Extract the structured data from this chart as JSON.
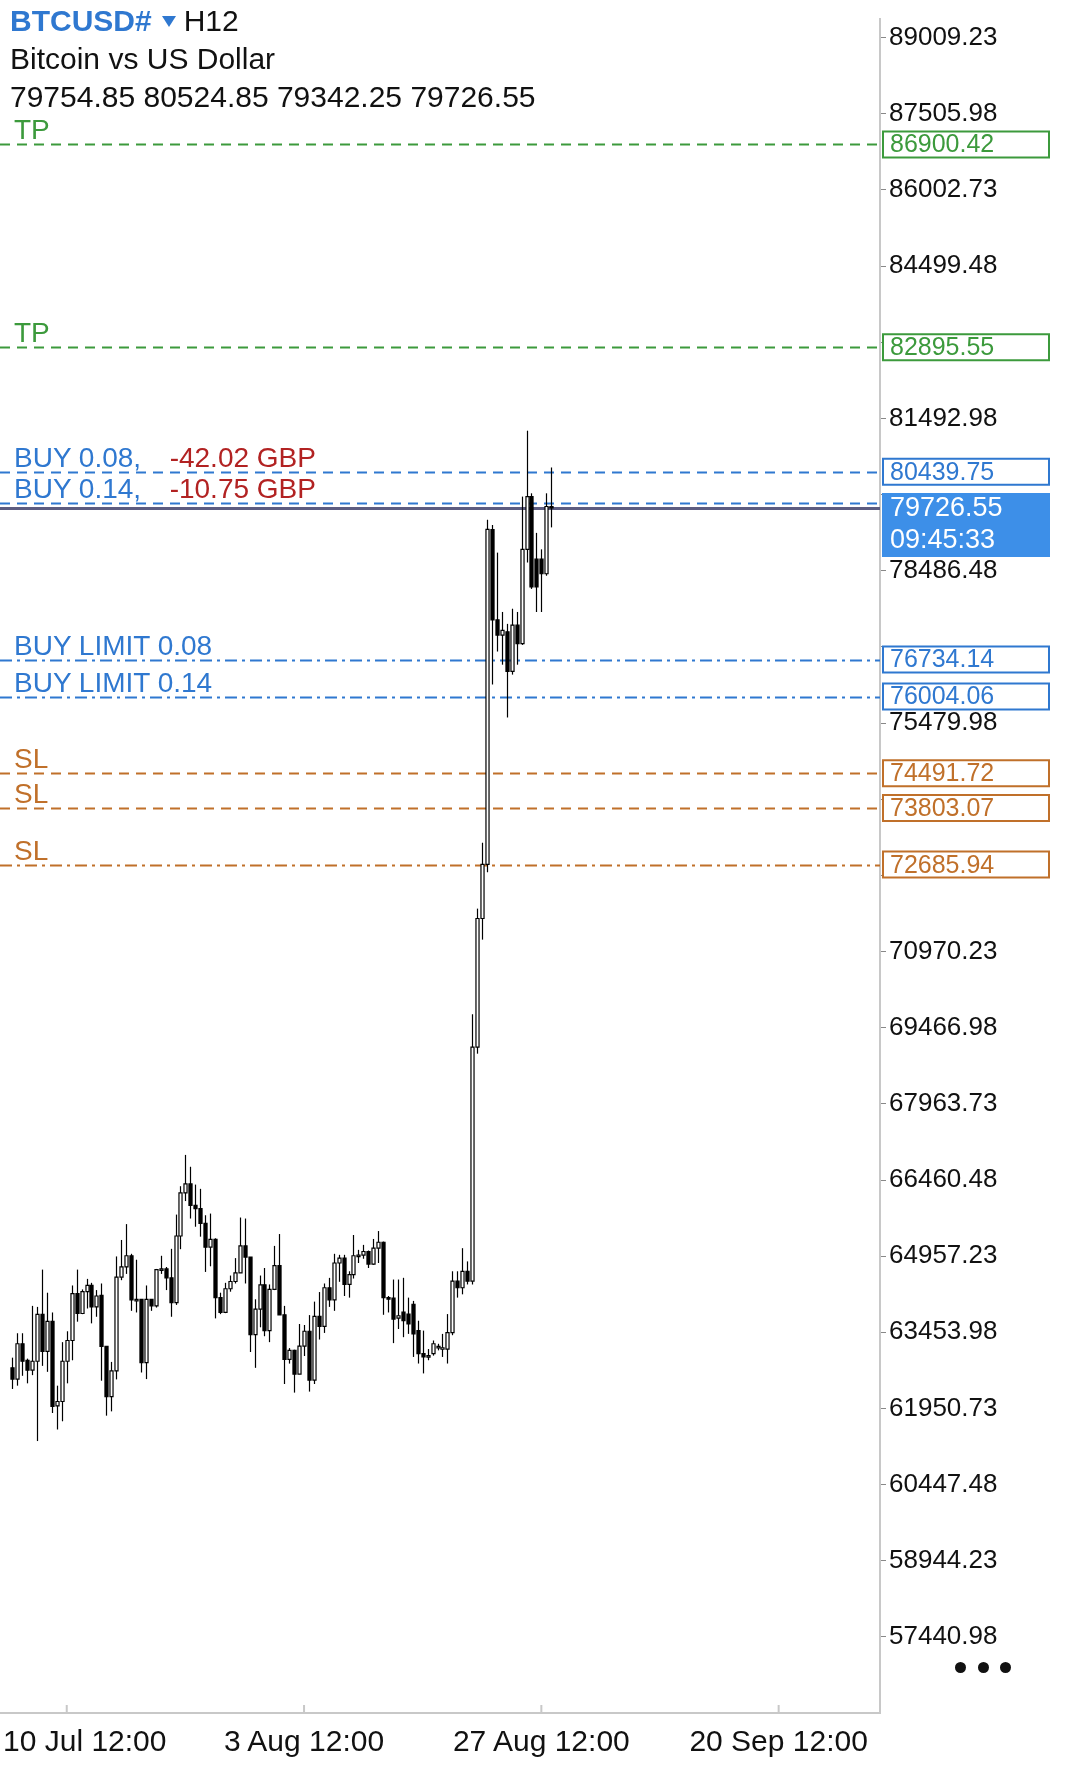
{
  "chart_data": {
    "type": "candlestick",
    "title": "BTCUSD#",
    "subtitle": "Bitcoin vs US Dollar",
    "annotations": [
      "H12",
      "79754.85 80524.85 79342.25 79726.55",
      "09:45:33",
      {
        "text": "TP",
        "y": 86900.42
      },
      {
        "text": "TP",
        "y": 82895.55
      },
      {
        "text": "BUY 0.08,",
        "y": 80439.75
      },
      {
        "text": "-42.02 GBP",
        "y": 80439.75
      },
      {
        "text": "BUY 0.14,",
        "y": 79826
      },
      {
        "text": "-10.75 GBP",
        "y": 79826
      },
      {
        "text": "BUY LIMIT 0.08",
        "y": 76734.14
      },
      {
        "text": "BUY LIMIT 0.14",
        "y": 76004.06
      },
      {
        "text": "SL",
        "y": 74491.72
      },
      {
        "text": "SL",
        "y": 73803.07
      },
      {
        "text": "SL",
        "y": 72685.94
      }
    ],
    "categories": [
      null,
      null,
      null,
      null,
      null,
      null,
      null,
      null,
      null,
      null,
      null,
      null,
      null,
      "10 Jul 12:00",
      null,
      null,
      null,
      null,
      null,
      null,
      null,
      null,
      null,
      null,
      null,
      null,
      null,
      null,
      null,
      null,
      null,
      null,
      null,
      null,
      null,
      null,
      null,
      null,
      null,
      null,
      null,
      null,
      null,
      null,
      null,
      null,
      null,
      null,
      null,
      null,
      null,
      null,
      null,
      null,
      null,
      null,
      null,
      null,
      null,
      null,
      null,
      "3 Aug 12:00",
      null,
      null,
      null,
      null,
      null,
      null,
      null,
      null,
      null,
      null,
      null,
      null,
      null,
      null,
      null,
      null,
      null,
      null,
      null,
      null,
      null,
      null,
      null,
      null,
      null,
      null,
      null,
      null,
      null,
      null,
      null,
      null,
      null,
      null,
      null,
      null,
      null,
      null,
      null,
      null,
      null,
      null,
      null,
      null,
      null,
      null,
      null,
      "27 Aug 12:00",
      null,
      null,
      null,
      null,
      null,
      null,
      null,
      null,
      null,
      null,
      null,
      null,
      null,
      null,
      null,
      null,
      null,
      null,
      null,
      null,
      null,
      null,
      null,
      null,
      null,
      null,
      null,
      null,
      null,
      null,
      null,
      null,
      null,
      null,
      null,
      null,
      null,
      null,
      null,
      null,
      null,
      null,
      null,
      null,
      null,
      null,
      null,
      "20 Sep 12:00",
      null,
      null,
      null,
      null,
      null,
      null,
      null,
      null,
      null,
      null,
      null,
      null,
      null,
      null,
      null,
      null,
      null,
      null,
      null,
      null
    ],
    "ohlc": [
      null,
      null,
      [
        62753,
        62954,
        62336,
        62531
      ],
      [
        62531,
        63436,
        62401,
        63228
      ],
      [
        63228,
        63436,
        62596,
        62883
      ],
      [
        62902,
        62935,
        62447,
        62707
      ],
      [
        62707,
        63976,
        62609,
        62883
      ],
      [
        62883,
        63956,
        61308,
        63807
      ],
      [
        63807,
        64692,
        62792,
        63078
      ],
      [
        63078,
        64236,
        62674,
        63670
      ],
      [
        63670,
        63846,
        61861,
        61991
      ],
      [
        62004,
        62401,
        61536,
        62089
      ],
      [
        62089,
        63260,
        61698,
        62883
      ],
      [
        62883,
        63475,
        62447,
        63293
      ],
      [
        63293,
        64379,
        62902,
        64217
      ],
      [
        64217,
        64692,
        63664,
        63826
      ],
      [
        63826,
        64301,
        63813,
        64256
      ],
      [
        64256,
        64509,
        63924,
        64379
      ],
      [
        64379,
        64431,
        63631,
        63956
      ],
      [
        63956,
        64288,
        63761,
        64171
      ],
      [
        64184,
        64418,
        62499,
        63175
      ],
      [
        63175,
        63175,
        61809,
        62186
      ],
      [
        62186,
        62870,
        61894,
        62694
      ],
      [
        62694,
        64952,
        62525,
        64542
      ],
      [
        64542,
        65277,
        64483,
        64744
      ],
      [
        64744,
        65590,
        64607,
        64965
      ],
      [
        64965,
        65004,
        63878,
        64093
      ],
      [
        64093,
        64887,
        63846,
        64106
      ],
      [
        64106,
        64106,
        62661,
        62857
      ],
      [
        62857,
        64379,
        62531,
        64106
      ],
      [
        64106,
        64106,
        63878,
        63976
      ],
      [
        63976,
        64705,
        63943,
        64692
      ],
      [
        64692,
        64965,
        64607,
        64705
      ],
      [
        64705,
        64744,
        64288,
        64529
      ],
      [
        64529,
        65102,
        63761,
        64041
      ],
      [
        64041,
        65778,
        63995,
        65355
      ],
      [
        65355,
        66338,
        65095,
        66208
      ],
      [
        66208,
        66956,
        66045,
        66383
      ],
      [
        66383,
        66722,
        65700,
        65961
      ],
      [
        65961,
        66370,
        65538,
        65896
      ],
      [
        65896,
        66286,
        65342,
        65603
      ],
      [
        65603,
        65765,
        64646,
        65134
      ],
      [
        65134,
        65798,
        64757,
        65290
      ],
      [
        65290,
        65310,
        63729,
        64139
      ],
      [
        64139,
        64236,
        63813,
        63846
      ],
      [
        63846,
        64431,
        63833,
        64314
      ],
      [
        64314,
        64575,
        64256,
        64457
      ],
      [
        64457,
        64919,
        64418,
        64627
      ],
      [
        64627,
        65720,
        64627,
        65160
      ],
      [
        65160,
        65700,
        64418,
        64939
      ],
      [
        64939,
        64939,
        63065,
        63410
      ],
      [
        63410,
        64106,
        62753,
        63911
      ],
      [
        63911,
        64575,
        63553,
        64392
      ],
      [
        64392,
        64724,
        63377,
        63488
      ],
      [
        63488,
        64399,
        63260,
        64301
      ],
      [
        64301,
        65160,
        64288,
        64770
      ],
      [
        64770,
        65394,
        63800,
        63800
      ],
      [
        63800,
        63976,
        62434,
        62922
      ],
      [
        62922,
        63143,
        62837,
        63097
      ],
      [
        63097,
        63110,
        62264,
        62629
      ],
      [
        62629,
        63618,
        62629,
        63182
      ],
      [
        63182,
        63599,
        62987,
        63475
      ],
      [
        63475,
        63794,
        62284,
        62512
      ],
      [
        62512,
        64060,
        62434,
        63768
      ],
      [
        63768,
        64249,
        63312,
        63573
      ],
      [
        63573,
        64418,
        63442,
        64334
      ],
      [
        64334,
        64529,
        63956,
        64093
      ],
      [
        64093,
        65004,
        63878,
        64822
      ],
      [
        64822,
        64984,
        64451,
        64919
      ],
      [
        64919,
        64984,
        64171,
        64399
      ],
      [
        64399,
        64659,
        64139,
        64594
      ],
      [
        64594,
        65375,
        64516,
        64965
      ],
      [
        64965,
        65082,
        64822,
        64978
      ],
      [
        64978,
        65180,
        64906,
        65049
      ],
      [
        65049,
        65069,
        64724,
        64802
      ],
      [
        64802,
        65297,
        64789,
        65115
      ],
      [
        65115,
        65453,
        64822,
        65232
      ],
      [
        65232,
        65245,
        63800,
        64139
      ],
      [
        64139,
        64171,
        63846,
        64132
      ],
      [
        64132,
        64496,
        63241,
        63716
      ],
      [
        63735,
        64496,
        63520,
        63781
      ],
      [
        63852,
        64530,
        63358,
        63683
      ],
      [
        63814,
        64139,
        63423,
        63618
      ],
      [
        64008,
        64074,
        62968,
        63423
      ],
      [
        63488,
        63683,
        62838,
        63032
      ],
      [
        63032,
        63488,
        62643,
        62968
      ],
      [
        62968,
        63124,
        62903,
        62994
      ],
      [
        63032,
        63293,
        62994,
        63228
      ],
      [
        63163,
        63228,
        63098,
        63176
      ],
      [
        63124,
        63423,
        62968,
        63150
      ],
      [
        63124,
        63814,
        62838,
        63449
      ],
      [
        63449,
        64659,
        63397,
        64464
      ],
      [
        64464,
        64659,
        64139,
        64334
      ],
      [
        64334,
        65115,
        64204,
        64659
      ],
      [
        64659,
        64854,
        64399,
        64464
      ],
      [
        64464,
        69734,
        64399,
        69084
      ],
      [
        69084,
        71817,
        68954,
        71622
      ],
      [
        71622,
        73118,
        71205,
        72689
      ],
      [
        72689,
        79494,
        72533,
        79304
      ],
      [
        79299,
        79390,
        76241,
        77516
      ],
      [
        77516,
        78844,
        76892,
        77217
      ],
      [
        77217,
        77673,
        76632,
        77308
      ],
      [
        77282,
        77438,
        75590,
        76501
      ],
      [
        76501,
        77737,
        76436,
        77412
      ],
      [
        77412,
        77673,
        76632,
        77048
      ],
      [
        77048,
        79950,
        77022,
        78909
      ],
      [
        78909,
        81251,
        78649,
        79950
      ],
      [
        79950,
        80015,
        78128,
        78167
      ],
      [
        78714,
        79234,
        77672,
        78167
      ],
      [
        78714,
        78909,
        77672,
        78427
      ],
      [
        78427,
        80015,
        78388,
        79755
      ],
      [
        79754.85,
        80524.85,
        79342.25,
        79726.55
      ],
      null,
      null,
      null,
      null,
      null,
      null,
      null,
      null,
      null,
      null,
      null,
      null,
      null,
      null,
      null,
      null,
      null,
      null,
      null,
      null,
      null,
      null,
      null,
      null,
      null,
      null,
      null,
      null,
      null,
      null,
      null,
      null,
      null,
      null,
      null,
      null,
      null,
      null,
      null,
      null,
      null,
      null,
      null,
      null,
      null,
      null,
      null,
      null,
      null,
      null,
      null,
      null,
      null,
      null,
      null,
      null,
      null,
      null,
      null,
      null,
      null,
      null,
      null,
      null,
      null,
      null
    ],
    "ylim": [
      55940,
      89385
    ],
    "yticks": [
      89009.23,
      87505.98,
      86002.73,
      84499.48,
      {
        "value": 82996.23,
        "label": null
      },
      81492.98,
      {
        "value": 79989.73,
        "label": null
      },
      78486.48,
      {
        "value": 76983.23,
        "label": null
      },
      75479.98,
      {
        "value": 73976.73,
        "label": null
      },
      {
        "value": 72473.48,
        "label": null
      },
      70970.23,
      69466.98,
      67963.73,
      66460.48,
      64957.23,
      63453.98,
      61950.73,
      60447.48,
      58944.23,
      57440.98
    ],
    "ref_lines": [
      {
        "axis": "y",
        "value": 86900.42,
        "label": "86900.42",
        "color": "#3c9a3c",
        "line_style": "dashed"
      },
      {
        "axis": "y",
        "value": 82895.55,
        "label": "82895.55",
        "color": "#3c9a3c",
        "line_style": "dashed"
      },
      {
        "axis": "y",
        "value": 80439.75,
        "label": "80439.75",
        "color": "#2f78d0",
        "line_style": "dashed"
      },
      {
        "axis": "y",
        "value": 79826,
        "color": "#2f78d0",
        "line_style": "dashed"
      },
      {
        "axis": "y",
        "value": 79726.55,
        "label": "79726.55",
        "color": "#5c5c80",
        "line_style": "solid"
      },
      {
        "axis": "y",
        "value": 76734.14,
        "label": "76734.14",
        "color": "#2f78d0",
        "line_style": "dashdot"
      },
      {
        "axis": "y",
        "value": 76004.06,
        "label": "76004.06",
        "color": "#2f78d0",
        "line_style": "dashdot"
      },
      {
        "axis": "y",
        "value": 74491.72,
        "label": "74491.72",
        "color": "#c0702a",
        "line_style": "dashed"
      },
      {
        "axis": "y",
        "value": 73803.07,
        "label": "73803.07",
        "color": "#c0702a",
        "line_style": "dashed"
      },
      {
        "axis": "y",
        "value": 72685.94,
        "label": "72685.94",
        "color": "#c0702a",
        "line_style": "dashdot"
      }
    ]
  }
}
